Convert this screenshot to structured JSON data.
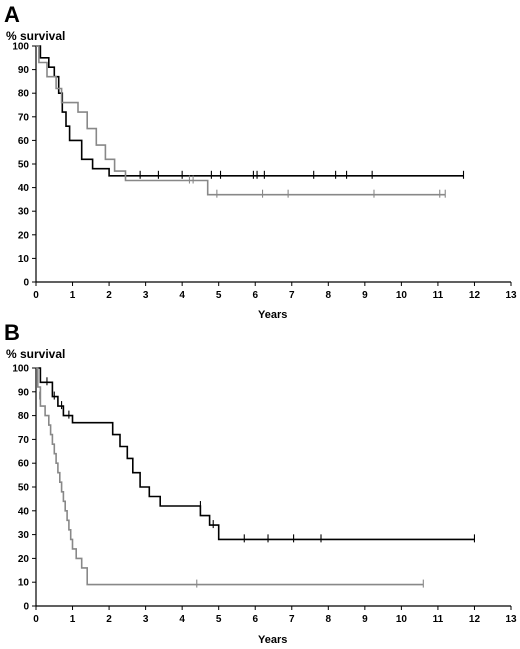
{
  "chart_data": [
    {
      "panel": "A",
      "type": "line",
      "step": true,
      "xlabel": "Years",
      "ylabel": "% survival",
      "xlim": [
        0,
        13
      ],
      "ylim": [
        0,
        100
      ],
      "xticks": [
        "0",
        "1",
        "2",
        "3",
        "4",
        "5",
        "6",
        "7",
        "8",
        "9",
        "10",
        "11",
        "12",
        "13"
      ],
      "yticks": [
        "0",
        "10",
        "20",
        "30",
        "40",
        "50",
        "60",
        "70",
        "80",
        "90",
        "100"
      ],
      "grid": false,
      "series": [
        {
          "color": "#000000",
          "x": [
            0,
            0.12,
            0.35,
            0.5,
            0.62,
            0.72,
            0.82,
            0.92,
            1.25,
            1.55,
            2.0,
            11.7
          ],
          "y": [
            100,
            95,
            91,
            87,
            80,
            72,
            66,
            60,
            52,
            48,
            45,
            45
          ],
          "censored": [
            {
              "x": 2.85,
              "y": 45
            },
            {
              "x": 3.35,
              "y": 45
            },
            {
              "x": 4.0,
              "y": 45
            },
            {
              "x": 4.8,
              "y": 45
            },
            {
              "x": 5.05,
              "y": 45
            },
            {
              "x": 5.95,
              "y": 45
            },
            {
              "x": 6.05,
              "y": 45
            },
            {
              "x": 6.25,
              "y": 45
            },
            {
              "x": 7.6,
              "y": 45
            },
            {
              "x": 8.2,
              "y": 45
            },
            {
              "x": 8.5,
              "y": 45
            },
            {
              "x": 9.2,
              "y": 45
            },
            {
              "x": 11.7,
              "y": 45
            }
          ]
        },
        {
          "color": "#888888",
          "x": [
            0,
            0.08,
            0.3,
            0.55,
            0.7,
            1.15,
            1.4,
            1.65,
            1.9,
            2.15,
            2.45,
            4.7,
            11.2
          ],
          "y": [
            100,
            93,
            87,
            82,
            76,
            72,
            65,
            58,
            52,
            47,
            43,
            37,
            37
          ],
          "censored": [
            {
              "x": 4.2,
              "y": 43
            },
            {
              "x": 4.3,
              "y": 43
            },
            {
              "x": 4.95,
              "y": 37
            },
            {
              "x": 6.2,
              "y": 37
            },
            {
              "x": 6.9,
              "y": 37
            },
            {
              "x": 9.25,
              "y": 37
            },
            {
              "x": 11.05,
              "y": 37
            },
            {
              "x": 11.2,
              "y": 37
            }
          ]
        }
      ]
    },
    {
      "panel": "B",
      "type": "line",
      "step": true,
      "xlabel": "Years",
      "ylabel": "% survival",
      "xlim": [
        0,
        13
      ],
      "ylim": [
        0,
        100
      ],
      "xticks": [
        "0",
        "1",
        "2",
        "3",
        "4",
        "5",
        "6",
        "7",
        "8",
        "9",
        "10",
        "11",
        "12",
        "13"
      ],
      "yticks": [
        "0",
        "10",
        "20",
        "30",
        "40",
        "50",
        "60",
        "70",
        "80",
        "90",
        "100"
      ],
      "grid": false,
      "series": [
        {
          "color": "#000000",
          "x": [
            0,
            0.12,
            0.45,
            0.6,
            0.75,
            1.0,
            1.55,
            2.1,
            2.3,
            2.5,
            2.65,
            2.85,
            3.1,
            3.4,
            4.5,
            4.75,
            5.0,
            12.0
          ],
          "y": [
            100,
            94,
            88,
            84,
            80,
            77,
            77,
            72,
            67,
            62,
            56,
            50,
            46,
            42,
            38,
            34,
            28,
            28
          ],
          "censored": [
            {
              "x": 0.3,
              "y": 94
            },
            {
              "x": 0.5,
              "y": 88
            },
            {
              "x": 0.7,
              "y": 84
            },
            {
              "x": 0.9,
              "y": 80
            },
            {
              "x": 4.5,
              "y": 42
            },
            {
              "x": 4.85,
              "y": 34
            },
            {
              "x": 5.7,
              "y": 28
            },
            {
              "x": 6.35,
              "y": 28
            },
            {
              "x": 7.05,
              "y": 28
            },
            {
              "x": 7.8,
              "y": 28
            },
            {
              "x": 12.0,
              "y": 28
            }
          ]
        },
        {
          "color": "#888888",
          "x": [
            0,
            0.05,
            0.12,
            0.25,
            0.35,
            0.4,
            0.45,
            0.5,
            0.55,
            0.6,
            0.65,
            0.7,
            0.75,
            0.8,
            0.85,
            0.9,
            0.95,
            1.0,
            1.1,
            1.25,
            1.4,
            10.6
          ],
          "y": [
            100,
            92,
            84,
            80,
            76,
            72,
            68,
            64,
            60,
            56,
            52,
            48,
            44,
            40,
            36,
            32,
            28,
            24,
            20,
            16,
            9,
            9
          ],
          "censored": [
            {
              "x": 0.1,
              "y": 88
            },
            {
              "x": 4.4,
              "y": 9
            },
            {
              "x": 10.6,
              "y": 9
            }
          ]
        }
      ]
    }
  ]
}
